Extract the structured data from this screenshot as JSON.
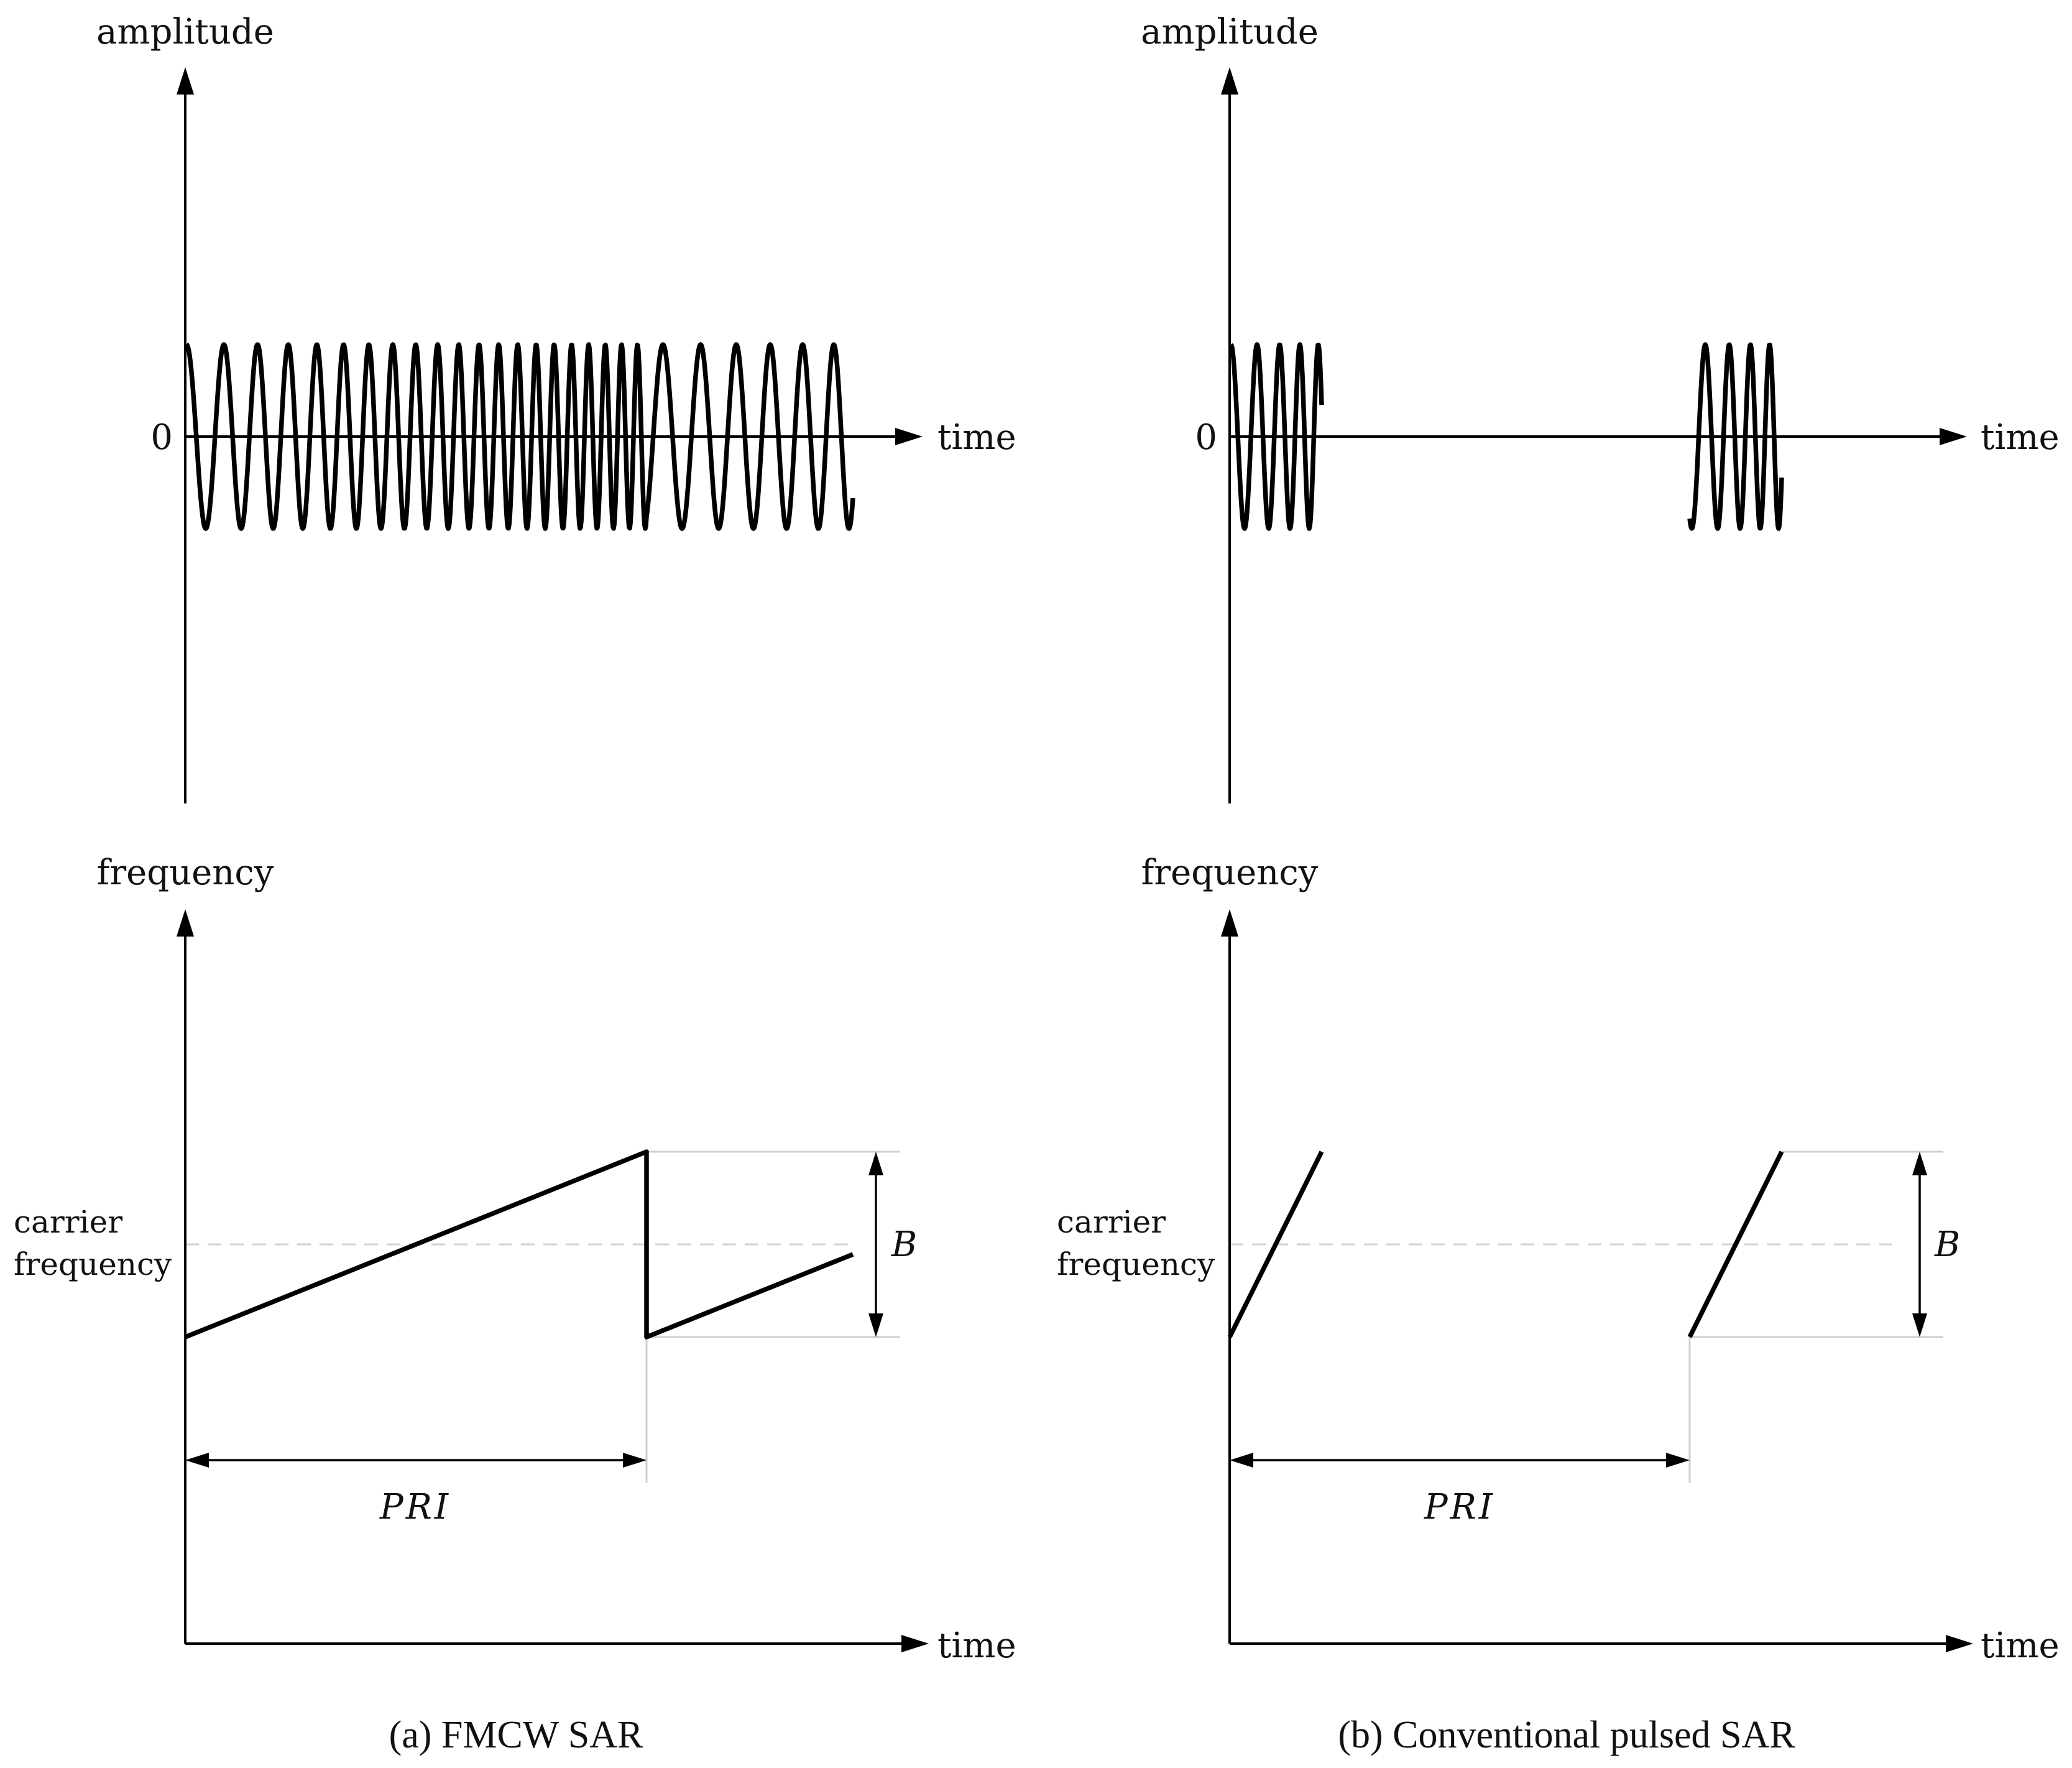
{
  "panels": [
    {
      "id": "a",
      "caption": "(a)  FMCW SAR",
      "top_plot": {
        "ylabel": "amplitude",
        "xlabel": "time",
        "zero_label": "0"
      },
      "bottom_plot": {
        "ylabel": "frequency",
        "xlabel": "time",
        "carrier_label_line1": "carrier",
        "carrier_label_line2": "frequency",
        "bandwidth_label": "B",
        "interval_label": "PRI"
      }
    },
    {
      "id": "b",
      "caption": "(b)  Conventional pulsed SAR",
      "top_plot": {
        "ylabel": "amplitude",
        "xlabel": "time",
        "zero_label": "0"
      },
      "bottom_plot": {
        "ylabel": "frequency",
        "xlabel": "time",
        "carrier_label_line1": "carrier",
        "carrier_label_line2": "frequency",
        "bandwidth_label": "B",
        "interval_label": "PRI"
      }
    }
  ]
}
